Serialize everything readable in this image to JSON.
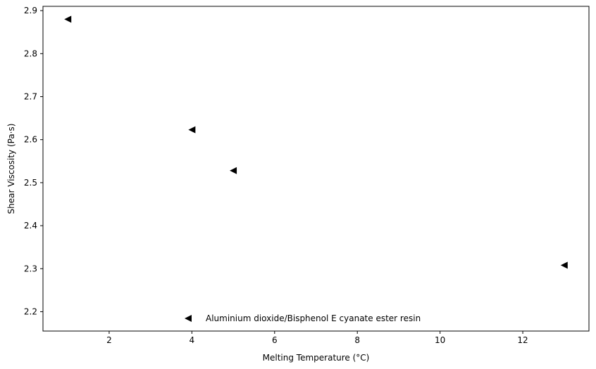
{
  "chart_data": {
    "type": "scatter",
    "title": "",
    "xlabel": "Melting Temperature (°C)",
    "ylabel": "Shear Viscosity (Pa·s)",
    "xlim": [
      0.4,
      13.6
    ],
    "ylim": [
      2.155,
      2.91
    ],
    "xticks": [
      2,
      4,
      6,
      8,
      10,
      12
    ],
    "yticks": [
      2.2,
      2.3,
      2.4,
      2.5,
      2.6,
      2.7,
      2.8,
      2.9
    ],
    "grid": false,
    "legend_position": "lower center",
    "marker": "triangle-left",
    "color": "#000000",
    "series": [
      {
        "name": "Aluminium dioxide/Bisphenol E cyanate ester resin",
        "points": [
          {
            "x": 1,
            "y": 2.88
          },
          {
            "x": 4,
            "y": 2.623
          },
          {
            "x": 5,
            "y": 2.528
          },
          {
            "x": 13,
            "y": 2.308
          }
        ]
      }
    ]
  }
}
